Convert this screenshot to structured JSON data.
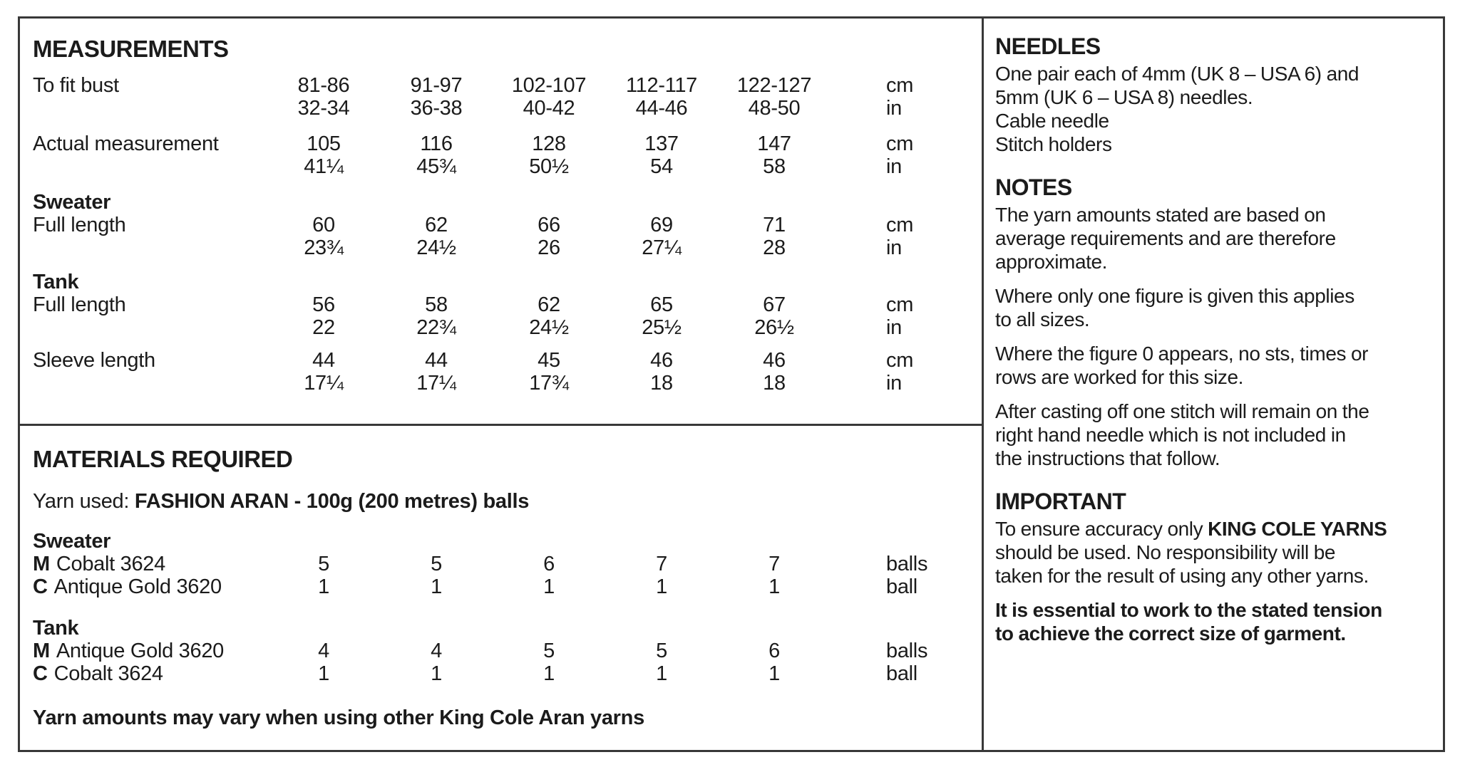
{
  "measurements": {
    "title": "MEASUREMENTS",
    "units": {
      "cm": "cm",
      "in": "in"
    },
    "rows": [
      {
        "label": "To fit bust",
        "cm": [
          "81-86",
          "91-97",
          "102-107",
          "112-117",
          "122-127"
        ],
        "in": [
          "32-34",
          "36-38",
          "40-42",
          "44-46",
          "48-50"
        ]
      },
      {
        "label": "Actual measurement",
        "cm": [
          "105",
          "116",
          "128",
          "137",
          "147"
        ],
        "in": [
          "41¼",
          "45¾",
          "50½",
          "54",
          "58"
        ]
      },
      {
        "subhead": "Sweater",
        "label": "Full length",
        "cm": [
          "60",
          "62",
          "66",
          "69",
          "71"
        ],
        "in": [
          "23¾",
          "24½",
          "26",
          "27¼",
          "28"
        ]
      },
      {
        "subhead": "Tank",
        "label": "Full length",
        "cm": [
          "56",
          "58",
          "62",
          "65",
          "67"
        ],
        "in": [
          "22",
          "22¾",
          "24½",
          "25½",
          "26½"
        ]
      },
      {
        "label": "Sleeve length",
        "cm": [
          "44",
          "44",
          "45",
          "46",
          "46"
        ],
        "in": [
          "17¼",
          "17¼",
          "17¾",
          "18",
          "18"
        ]
      }
    ]
  },
  "materials": {
    "title": "MATERIALS REQUIRED",
    "yarn_used_prefix": "Yarn used: ",
    "yarn_used_bold": "FASHION ARAN - 100g (200 metres) balls",
    "groups": [
      {
        "subhead": "Sweater",
        "rows": [
          {
            "code": "M",
            "name": "Cobalt 3624",
            "values": [
              "5",
              "5",
              "6",
              "7",
              "7"
            ],
            "unit": "balls"
          },
          {
            "code": "C",
            "name": "Antique Gold 3620",
            "values": [
              "1",
              "1",
              "1",
              "1",
              "1"
            ],
            "unit": "ball"
          }
        ]
      },
      {
        "subhead": "Tank",
        "rows": [
          {
            "code": "M",
            "name": "Antique Gold 3620",
            "values": [
              "4",
              "4",
              "5",
              "5",
              "6"
            ],
            "unit": "balls"
          },
          {
            "code": "C",
            "name": "Cobalt 3624",
            "values": [
              "1",
              "1",
              "1",
              "1",
              "1"
            ],
            "unit": "ball"
          }
        ]
      }
    ],
    "footnote": "Yarn amounts may vary when using other King Cole Aran yarns"
  },
  "info": {
    "needles": {
      "title": "NEEDLES",
      "body": "One pair each of 4mm (UK 8 – USA 6) and\n5mm (UK 6 – USA 8) needles.\nCable needle\nStitch holders"
    },
    "notes": {
      "title": "NOTES",
      "paragraphs": [
        "The yarn amounts stated are based on\naverage requirements and are therefore\napproximate.",
        "Where only one figure is given this applies\nto all sizes.",
        "Where the figure 0 appears, no sts, times or\nrows are worked for this size.",
        "After casting off one stitch will remain on the\nright hand needle which is not included in\nthe instructions that follow."
      ]
    },
    "important": {
      "title": "IMPORTANT",
      "accuracy_prefix": "To ensure accuracy only ",
      "accuracy_bold": "KING COLE YARNS",
      "accuracy_suffix": "\nshould be used. No responsibility will be\ntaken for the result of using any other yarns.",
      "tension_note": "It is essential to work to the stated tension\nto achieve the correct size of garment."
    }
  }
}
